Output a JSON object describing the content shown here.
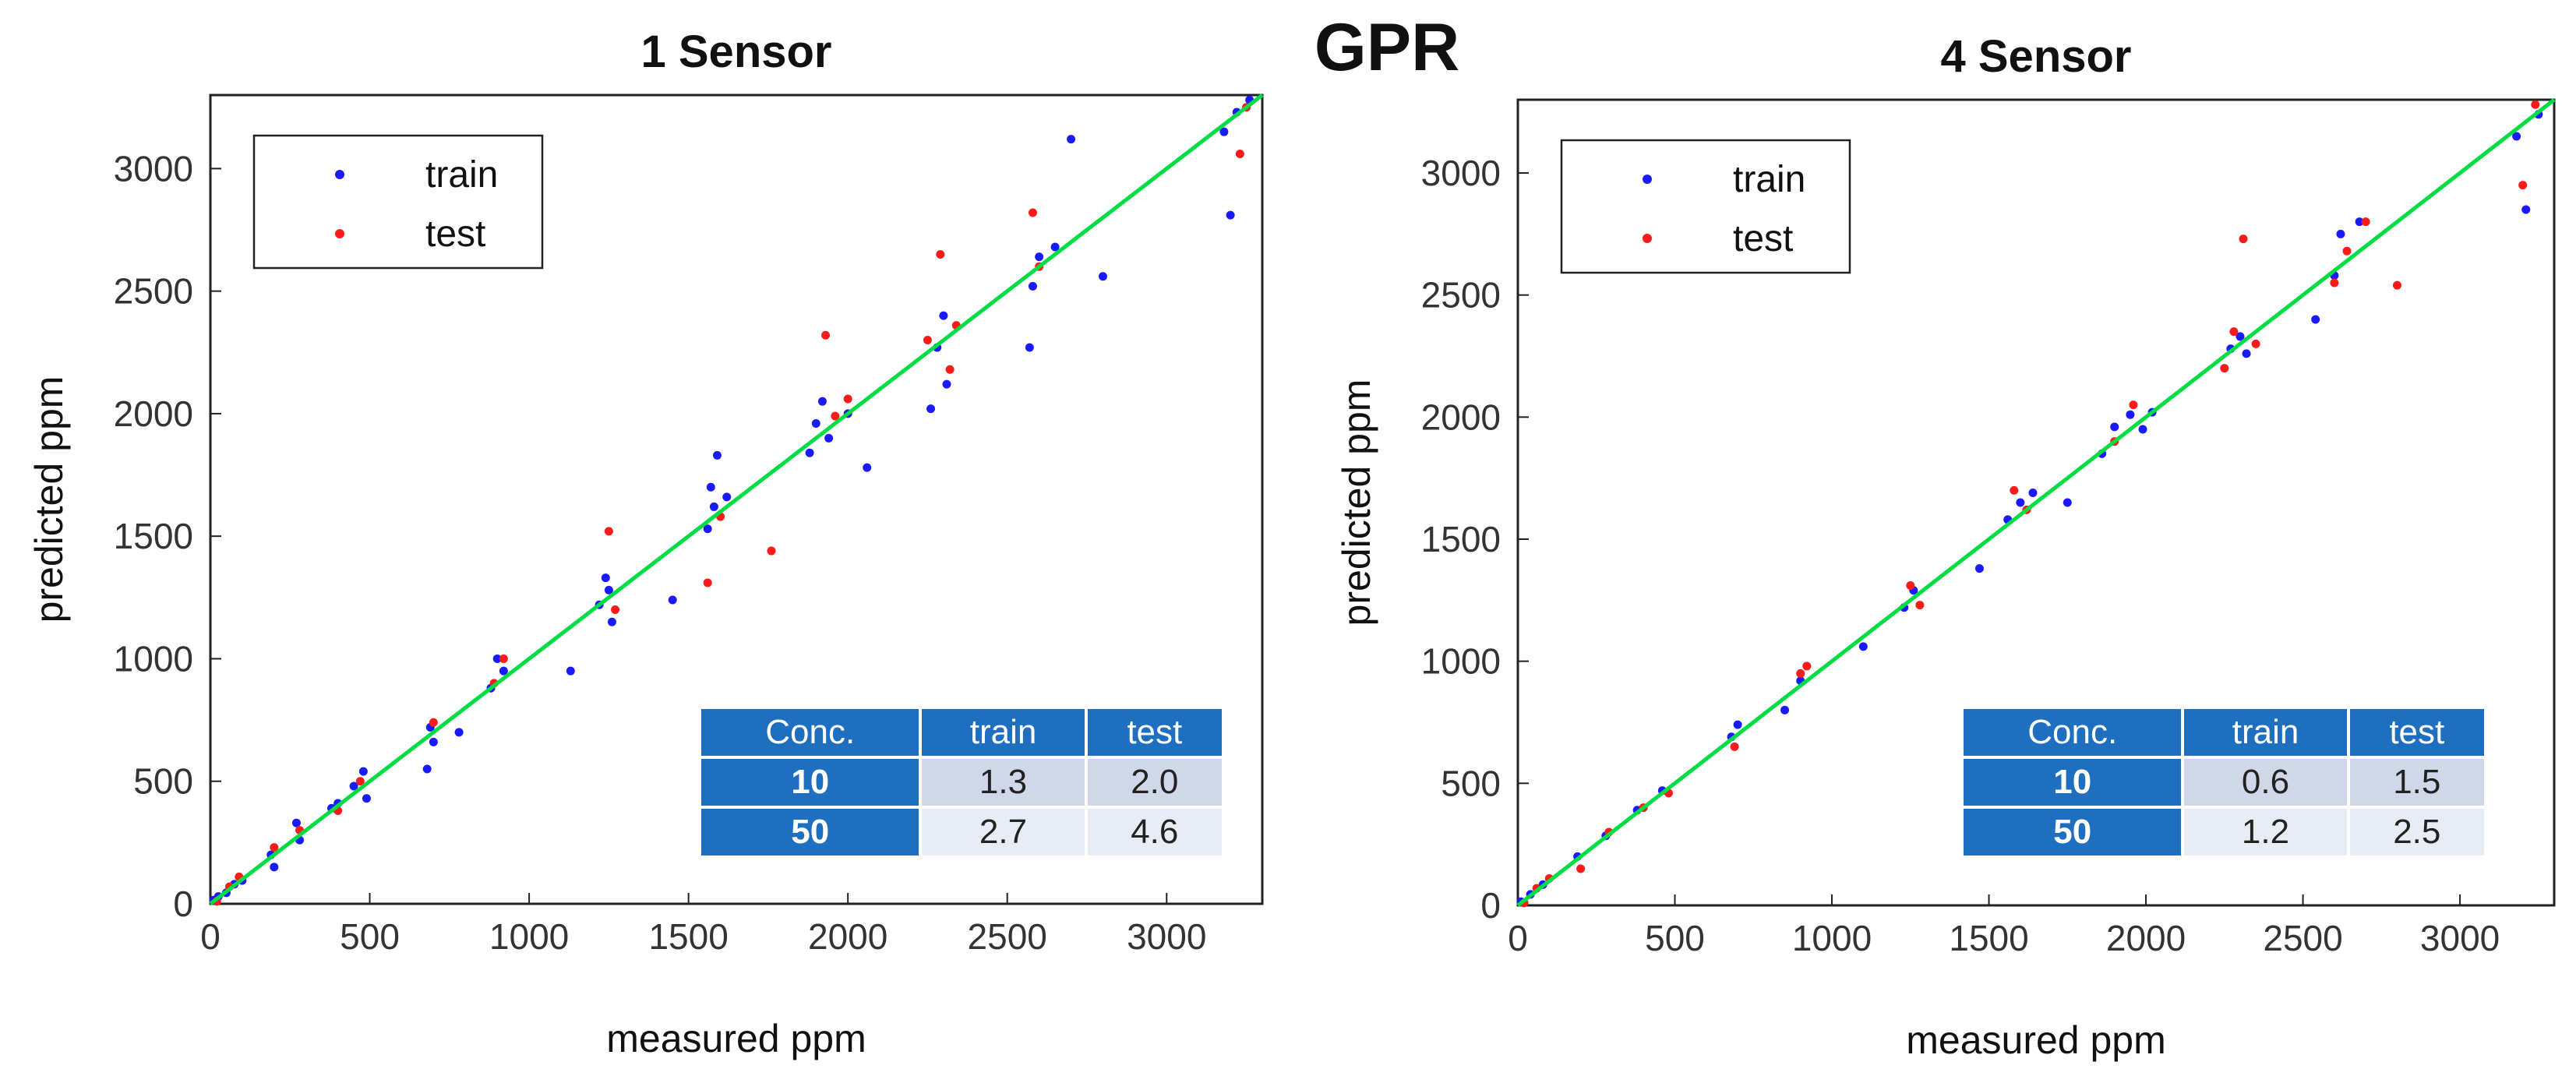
{
  "main_title": "GPR",
  "colors": {
    "train": "#1a1aff",
    "test": "#ff1a1a",
    "fit_line": "#00dd44",
    "table_head": "#1f6fc1"
  },
  "chart_data": [
    {
      "type": "scatter",
      "title": "1 Sensor",
      "xlabel": "measured ppm",
      "ylabel": "predicted ppm",
      "xlim": [
        0,
        3300
      ],
      "ylim": [
        0,
        3300
      ],
      "xticks": [
        "0",
        "500",
        "1000",
        "1500",
        "2000",
        "2500",
        "3000"
      ],
      "yticks": [
        "0",
        "500",
        "1000",
        "1500",
        "2000",
        "2500",
        "3000"
      ],
      "legend": [
        "train",
        "test"
      ],
      "legend_position": "top-left",
      "fit_line": [
        [
          0,
          0
        ],
        [
          3300,
          3300
        ]
      ],
      "series": [
        {
          "name": "train",
          "points": [
            [
              10,
              15
            ],
            [
              25,
              30
            ],
            [
              50,
              45
            ],
            [
              75,
              80
            ],
            [
              100,
              95
            ],
            [
              190,
              200
            ],
            [
              200,
              150
            ],
            [
              270,
              330
            ],
            [
              280,
              260
            ],
            [
              380,
              390
            ],
            [
              400,
              410
            ],
            [
              450,
              480
            ],
            [
              480,
              540
            ],
            [
              490,
              430
            ],
            [
              680,
              550
            ],
            [
              690,
              720
            ],
            [
              700,
              660
            ],
            [
              780,
              700
            ],
            [
              880,
              880
            ],
            [
              900,
              1000
            ],
            [
              920,
              950
            ],
            [
              1130,
              950
            ],
            [
              1220,
              1220
            ],
            [
              1240,
              1330
            ],
            [
              1250,
              1280
            ],
            [
              1260,
              1150
            ],
            [
              1450,
              1240
            ],
            [
              1560,
              1530
            ],
            [
              1570,
              1700
            ],
            [
              1580,
              1620
            ],
            [
              1590,
              1830
            ],
            [
              1620,
              1660
            ],
            [
              1880,
              1840
            ],
            [
              1900,
              1960
            ],
            [
              1920,
              2050
            ],
            [
              1940,
              1900
            ],
            [
              2000,
              2000
            ],
            [
              2060,
              1780
            ],
            [
              2260,
              2020
            ],
            [
              2280,
              2270
            ],
            [
              2300,
              2400
            ],
            [
              2310,
              2120
            ],
            [
              2570,
              2270
            ],
            [
              2580,
              2520
            ],
            [
              2600,
              2640
            ],
            [
              2650,
              2680
            ],
            [
              2700,
              3120
            ],
            [
              2800,
              2560
            ],
            [
              3180,
              3150
            ],
            [
              3200,
              2810
            ],
            [
              3220,
              3230
            ],
            [
              3260,
              3280
            ]
          ]
        },
        {
          "name": "test",
          "points": [
            [
              20,
              10
            ],
            [
              60,
              70
            ],
            [
              90,
              110
            ],
            [
              200,
              230
            ],
            [
              280,
              300
            ],
            [
              400,
              380
            ],
            [
              470,
              500
            ],
            [
              700,
              740
            ],
            [
              890,
              900
            ],
            [
              920,
              1000
            ],
            [
              1250,
              1520
            ],
            [
              1270,
              1200
            ],
            [
              1560,
              1310
            ],
            [
              1600,
              1580
            ],
            [
              1760,
              1440
            ],
            [
              1930,
              2320
            ],
            [
              1960,
              1990
            ],
            [
              2000,
              2060
            ],
            [
              2250,
              2300
            ],
            [
              2290,
              2650
            ],
            [
              2320,
              2180
            ],
            [
              2340,
              2360
            ],
            [
              2580,
              2820
            ],
            [
              2600,
              2600
            ],
            [
              3230,
              3060
            ],
            [
              3250,
              3250
            ]
          ]
        }
      ],
      "table": {
        "headers": [
          "Conc.",
          "train",
          "test"
        ],
        "rows": [
          [
            "10",
            "1.3",
            "2.0"
          ],
          [
            "50",
            "2.7",
            "4.6"
          ]
        ]
      }
    },
    {
      "type": "scatter",
      "title": "4 Sensor",
      "xlabel": "measured ppm",
      "ylabel": "predicted ppm",
      "xlim": [
        0,
        3300
      ],
      "ylim": [
        0,
        3300
      ],
      "xticks": [
        "0",
        "500",
        "1000",
        "1500",
        "2000",
        "2500",
        "3000"
      ],
      "yticks": [
        "0",
        "500",
        "1000",
        "1500",
        "2000",
        "2500",
        "3000"
      ],
      "legend": [
        "train",
        "test"
      ],
      "legend_position": "top-left",
      "fit_line": [
        [
          0,
          0
        ],
        [
          3300,
          3300
        ]
      ],
      "series": [
        {
          "name": "train",
          "points": [
            [
              10,
              15
            ],
            [
              40,
              45
            ],
            [
              80,
              85
            ],
            [
              190,
              200
            ],
            [
              280,
              285
            ],
            [
              380,
              390
            ],
            [
              460,
              470
            ],
            [
              680,
              690
            ],
            [
              700,
              740
            ],
            [
              850,
              800
            ],
            [
              900,
              920
            ],
            [
              1100,
              1060
            ],
            [
              1230,
              1220
            ],
            [
              1260,
              1290
            ],
            [
              1470,
              1380
            ],
            [
              1560,
              1580
            ],
            [
              1600,
              1650
            ],
            [
              1640,
              1690
            ],
            [
              1750,
              1650
            ],
            [
              1860,
              1850
            ],
            [
              1900,
              1960
            ],
            [
              1950,
              2010
            ],
            [
              1990,
              1950
            ],
            [
              2020,
              2020
            ],
            [
              2270,
              2280
            ],
            [
              2300,
              2330
            ],
            [
              2320,
              2260
            ],
            [
              2540,
              2400
            ],
            [
              2600,
              2580
            ],
            [
              2620,
              2750
            ],
            [
              2680,
              2800
            ],
            [
              3180,
              3150
            ],
            [
              3210,
              2850
            ],
            [
              3250,
              3240
            ]
          ]
        },
        {
          "name": "test",
          "points": [
            [
              20,
              10
            ],
            [
              60,
              70
            ],
            [
              100,
              110
            ],
            [
              200,
              150
            ],
            [
              290,
              300
            ],
            [
              400,
              400
            ],
            [
              480,
              460
            ],
            [
              690,
              650
            ],
            [
              900,
              950
            ],
            [
              920,
              980
            ],
            [
              1250,
              1310
            ],
            [
              1280,
              1230
            ],
            [
              1580,
              1700
            ],
            [
              1620,
              1620
            ],
            [
              1900,
              1900
            ],
            [
              1960,
              2050
            ],
            [
              2250,
              2200
            ],
            [
              2280,
              2350
            ],
            [
              2310,
              2730
            ],
            [
              2350,
              2300
            ],
            [
              2600,
              2550
            ],
            [
              2640,
              2680
            ],
            [
              2700,
              2800
            ],
            [
              2800,
              2540
            ],
            [
              3200,
              2950
            ],
            [
              3240,
              3280
            ]
          ]
        }
      ],
      "table": {
        "headers": [
          "Conc.",
          "train",
          "test"
        ],
        "rows": [
          [
            "10",
            "0.6",
            "1.5"
          ],
          [
            "50",
            "1.2",
            "2.5"
          ]
        ]
      }
    }
  ]
}
